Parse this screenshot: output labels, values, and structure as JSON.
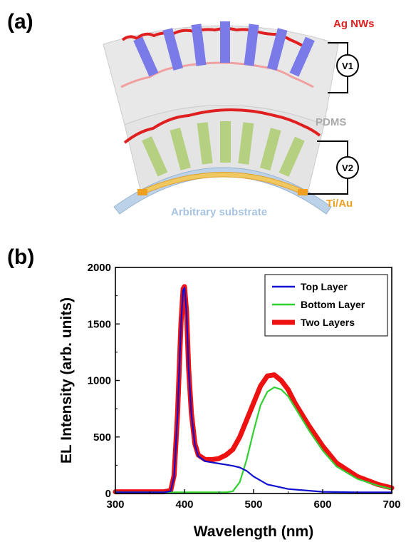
{
  "panel_a": {
    "letter": "(a)",
    "labels": {
      "ag_nws": "Ag NWs",
      "pdms": "PDMS",
      "ti_au": "Ti/Au",
      "substrate": "Arbitrary substrate"
    },
    "meters": [
      "V1",
      "V2"
    ],
    "colors": {
      "ag_nws": "#e02020",
      "pdms_text": "#aaaaaa",
      "ti_au": "#f0a020",
      "substrate": "#a8c4e0",
      "top_rods": "#7a7ae8",
      "bottom_rods": "#a8c878",
      "connectors": "#80c8a0"
    }
  },
  "panel_b": {
    "letter": "(b)"
  },
  "chart_data": {
    "type": "line",
    "xlabel": "Wavelength (nm)",
    "ylabel": "EL Intensity (arb. units)",
    "xlim": [
      300,
      700
    ],
    "ylim": [
      0,
      2000
    ],
    "xticks": [
      300,
      400,
      500,
      600,
      700
    ],
    "yticks": [
      0,
      500,
      1000,
      1500,
      2000
    ],
    "legend_position": "top-right",
    "grid": false,
    "series": [
      {
        "name": "Top Layer",
        "color": "#1010d0",
        "x": [
          300,
          350,
          370,
          380,
          385,
          390,
          395,
          398,
          400,
          403,
          406,
          410,
          415,
          420,
          430,
          440,
          450,
          460,
          470,
          480,
          490,
          500,
          520,
          550,
          600,
          650,
          700
        ],
        "y": [
          10,
          10,
          10,
          20,
          150,
          700,
          1500,
          1800,
          1820,
          1600,
          1100,
          700,
          430,
          330,
          285,
          275,
          265,
          255,
          245,
          230,
          200,
          150,
          80,
          40,
          15,
          10,
          10
        ]
      },
      {
        "name": "Bottom Layer",
        "color": "#30d030",
        "x": [
          300,
          400,
          440,
          460,
          470,
          480,
          490,
          500,
          510,
          520,
          530,
          540,
          550,
          560,
          580,
          600,
          620,
          650,
          680,
          700
        ],
        "y": [
          10,
          10,
          10,
          10,
          20,
          100,
          300,
          550,
          780,
          900,
          940,
          920,
          860,
          760,
          560,
          380,
          240,
          130,
          70,
          40
        ]
      },
      {
        "name": "Two Layers",
        "color": "#ee1111",
        "x": [
          300,
          350,
          370,
          380,
          385,
          390,
          395,
          398,
          400,
          403,
          406,
          410,
          415,
          420,
          430,
          440,
          450,
          460,
          470,
          480,
          490,
          500,
          510,
          520,
          530,
          540,
          550,
          560,
          580,
          600,
          620,
          650,
          680,
          700
        ],
        "y": [
          15,
          15,
          15,
          25,
          160,
          710,
          1510,
          1810,
          1830,
          1610,
          1110,
          710,
          440,
          340,
          300,
          300,
          310,
          340,
          390,
          500,
          650,
          800,
          950,
          1040,
          1050,
          1000,
          920,
          800,
          600,
          420,
          270,
          150,
          80,
          50
        ]
      }
    ]
  }
}
